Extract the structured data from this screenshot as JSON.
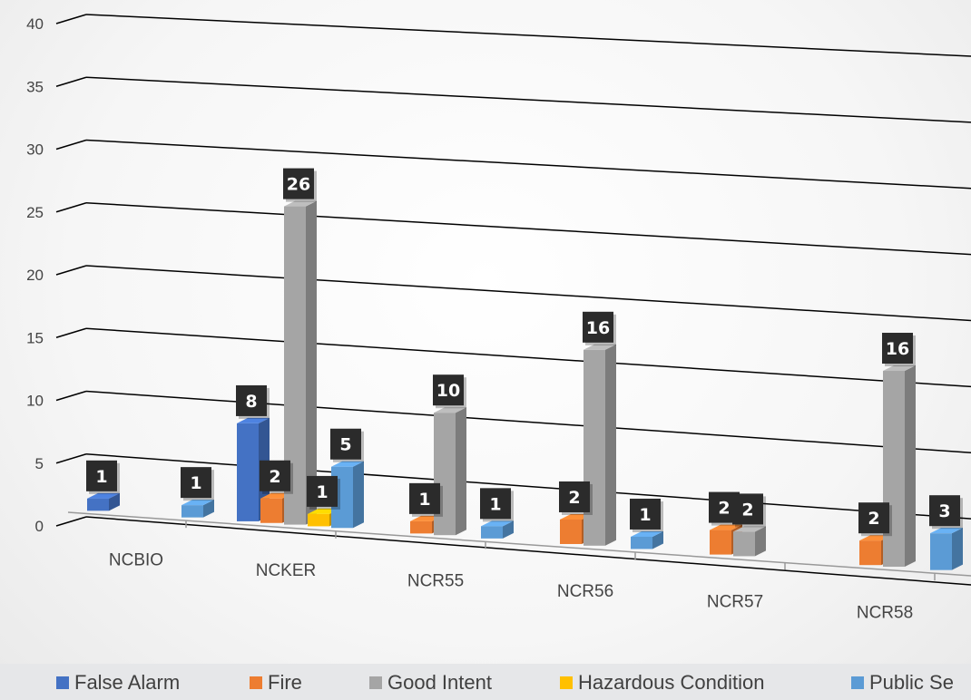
{
  "chart_data": {
    "type": "bar",
    "subtype": "3d-clustered-column",
    "categories": [
      "NCBIO",
      "NCKER",
      "NCR55",
      "NCR56",
      "NCR57",
      "NCR58"
    ],
    "series": [
      {
        "name": "False Alarm",
        "color": "#4472c4",
        "values": [
          1,
          8,
          null,
          null,
          null,
          null
        ]
      },
      {
        "name": "Fire",
        "color": "#ed7d31",
        "values": [
          null,
          2,
          1,
          2,
          2,
          2
        ]
      },
      {
        "name": "Good Intent",
        "color": "#a5a5a5",
        "values": [
          null,
          26,
          10,
          16,
          2,
          16
        ]
      },
      {
        "name": "Hazardous Condition",
        "color": "#ffc000",
        "values": [
          null,
          1,
          null,
          null,
          null,
          null
        ]
      },
      {
        "name": "Public Se",
        "color": "#5b9bd5",
        "values": [
          1,
          5,
          1,
          1,
          null,
          3
        ]
      }
    ],
    "y_ticks": [
      "0",
      "5",
      "10",
      "15",
      "20",
      "25",
      "30",
      "35",
      "40"
    ],
    "ylim": [
      0,
      40
    ],
    "grid": true,
    "legend_position": "bottom",
    "data_labels": true
  }
}
